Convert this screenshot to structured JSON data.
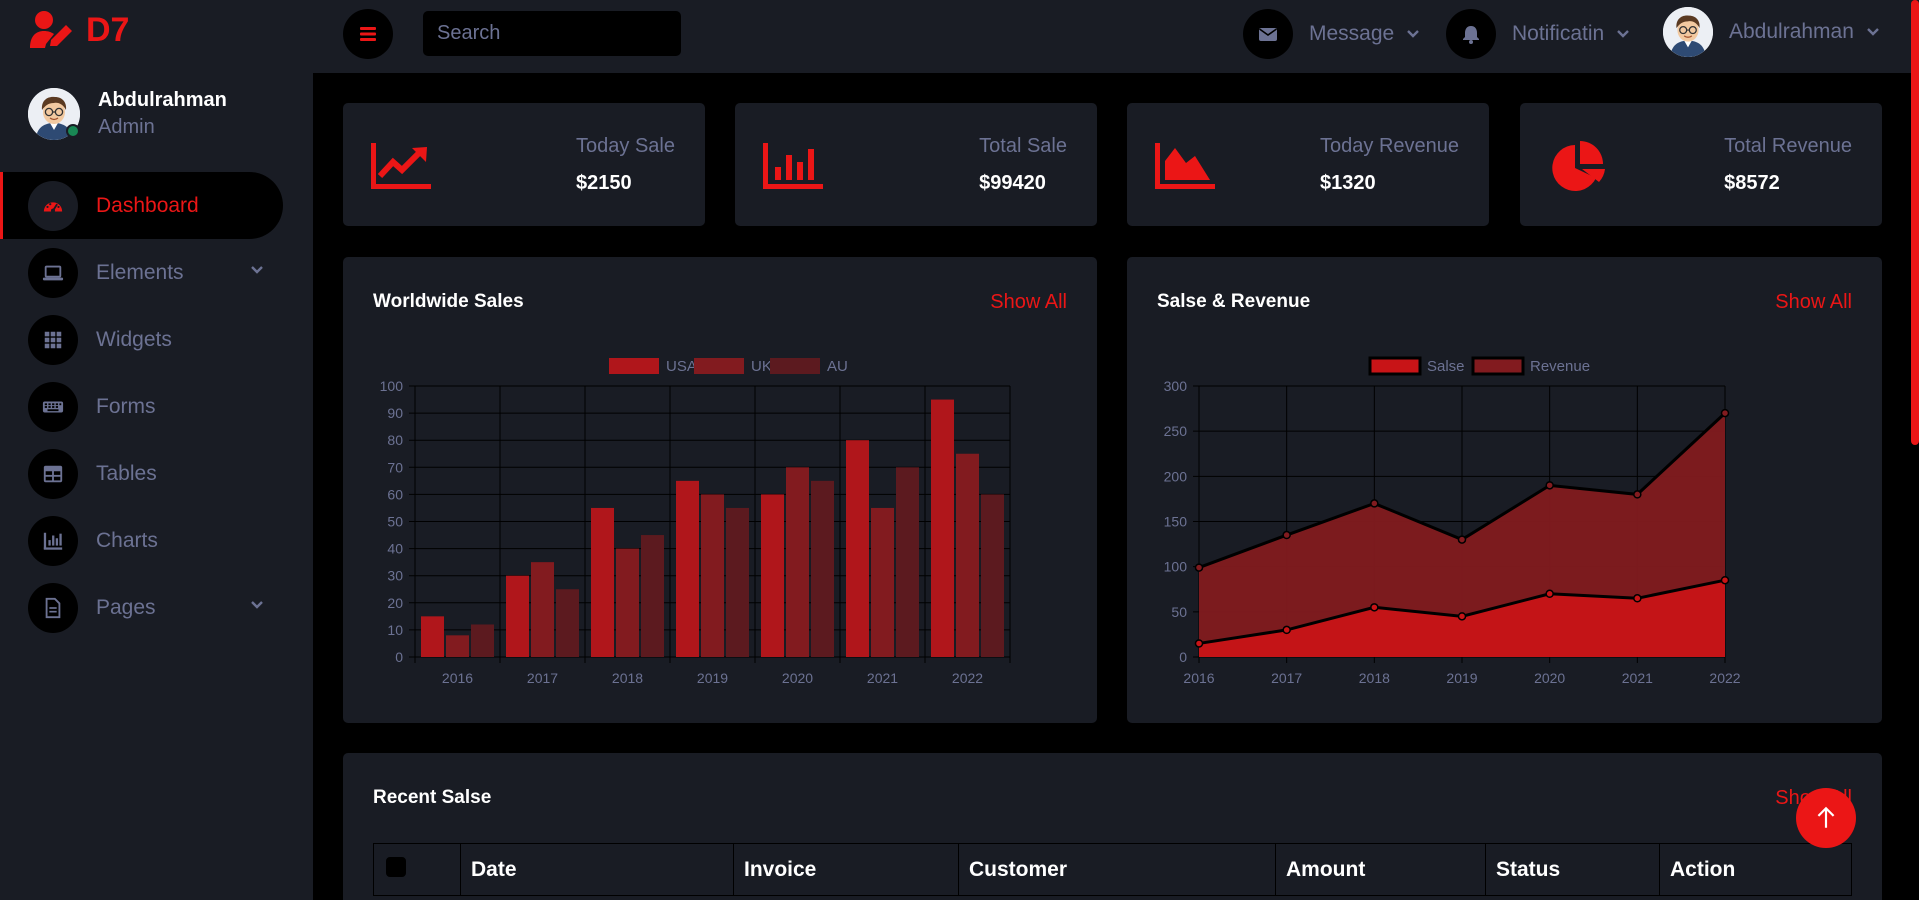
{
  "brand": {
    "name": "D7",
    "icon": "user-edit-icon"
  },
  "sidebar": {
    "profile": {
      "name": "Abdulrahman",
      "role": "Admin"
    },
    "items": [
      {
        "label": "Dashboard",
        "icon": "tachometer-icon",
        "active": true
      },
      {
        "label": "Elements",
        "icon": "laptop-icon",
        "dropdown": true
      },
      {
        "label": "Widgets",
        "icon": "grid-icon"
      },
      {
        "label": "Forms",
        "icon": "keyboard-icon"
      },
      {
        "label": "Tables",
        "icon": "table-icon"
      },
      {
        "label": "Charts",
        "icon": "chart-bar-icon"
      },
      {
        "label": "Pages",
        "icon": "file-icon",
        "dropdown": true
      }
    ]
  },
  "topbar": {
    "search_placeholder": "Search",
    "message_label": "Message",
    "notification_label": "Notificatin",
    "user_name": "Abdulrahman"
  },
  "stats": [
    {
      "label": "Today Sale",
      "value": "$2150",
      "icon": "chart-line-icon"
    },
    {
      "label": "Total Sale",
      "value": "$99420",
      "icon": "chart-bar-icon"
    },
    {
      "label": "Today Revenue",
      "value": "$1320",
      "icon": "chart-area-icon"
    },
    {
      "label": "Total Revenue",
      "value": "$8572",
      "icon": "chart-pie-icon"
    }
  ],
  "worldwide": {
    "title": "Worldwide Sales",
    "show_all": "Show All"
  },
  "revenue": {
    "title": "Salse & Revenue",
    "show_all": "Show All"
  },
  "recent": {
    "title": "Recent Salse",
    "show_all": "Show All",
    "columns": [
      "Date",
      "Invoice",
      "Customer",
      "Amount",
      "Status",
      "Action"
    ]
  },
  "colors": {
    "accent": "#EB1616",
    "panel": "#191C24",
    "background": "#000000",
    "muted": "#6C7293"
  },
  "chart_data": [
    {
      "type": "bar",
      "categories": [
        "2016",
        "2017",
        "2018",
        "2019",
        "2020",
        "2021",
        "2022"
      ],
      "series": [
        {
          "name": "USA",
          "values": [
            15,
            30,
            55,
            65,
            60,
            80,
            95
          ],
          "color": "#B0161B"
        },
        {
          "name": "UK",
          "values": [
            8,
            35,
            40,
            60,
            70,
            55,
            75
          ],
          "color": "#821B1F"
        },
        {
          "name": "AU",
          "values": [
            12,
            25,
            45,
            55,
            65,
            70,
            60
          ],
          "color": "#5C1A1F"
        }
      ],
      "ylim": [
        0,
        100
      ],
      "yticks": [
        0,
        10,
        20,
        30,
        40,
        50,
        60,
        70,
        80,
        90,
        100
      ],
      "legend": "top",
      "grid": true
    },
    {
      "type": "area",
      "categories": [
        "2016",
        "2017",
        "2018",
        "2019",
        "2020",
        "2021",
        "2022"
      ],
      "series": [
        {
          "name": "Salse",
          "values": [
            15,
            30,
            55,
            45,
            70,
            65,
            85
          ],
          "color": "#C81417"
        },
        {
          "name": "Revenue",
          "values": [
            99,
            135,
            170,
            130,
            190,
            180,
            270
          ],
          "color": "#821B1F"
        }
      ],
      "ylim": [
        0,
        300
      ],
      "yticks": [
        0,
        50,
        100,
        150,
        200,
        250,
        300
      ],
      "legend": "top",
      "grid": true
    }
  ]
}
